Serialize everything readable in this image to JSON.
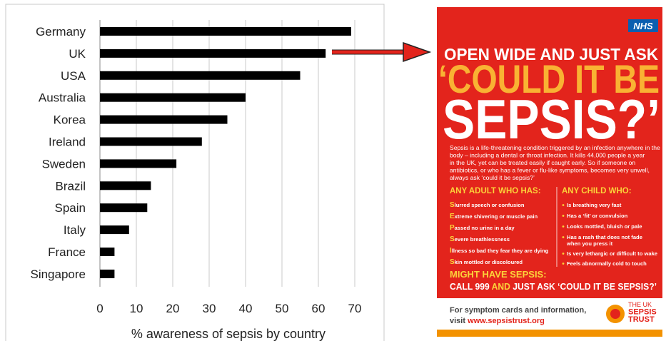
{
  "chart_data": {
    "type": "bar",
    "orientation": "horizontal",
    "x_label": "% awareness of sepsis by country",
    "categories": [
      "Germany",
      "UK",
      "USA",
      "Australia",
      "Korea",
      "Ireland",
      "Sweden",
      "Brazil",
      "Spain",
      "Italy",
      "France",
      "Singapore"
    ],
    "values": [
      69,
      62,
      55,
      40,
      35,
      28,
      21,
      14,
      13,
      8,
      4,
      4
    ],
    "color": "#000000",
    "xlim": [
      0,
      70
    ],
    "xticks": [
      0,
      10,
      20,
      30,
      40,
      50,
      60,
      70
    ],
    "grid": true
  },
  "poster": {
    "logo": "NHS",
    "headline": "OPEN WIDE AND JUST ASK",
    "title_line1": "‘COULD IT BE",
    "title_line2": "SEPSIS?’",
    "paragraph": [
      "Sepsis is a life-threatening condition triggered by an infection anywhere in the",
      "body – including a dental or throat infection. It kills 44,000 people a year",
      "in the UK, yet can be treated easily if caught early. So if someone on",
      "antibiotics, or who has a fever or flu-like symptoms, becomes very unwell,",
      "always ask ‘could it be sepsis?’"
    ],
    "adult_heading": "ANY ADULT WHO HAS:",
    "adult_items": [
      "Slurred speech or confusion",
      "Extreme shivering or muscle pain",
      "Passed no urine in a day",
      "Severe breathlessness",
      "Illness so bad they fear they are dying",
      "Skin mottled or discoloured"
    ],
    "child_heading": "ANY CHILD WHO:",
    "child_items": [
      "Is breathing very fast",
      "Has a ‘fit’ or convulsion",
      "Looks mottled, bluish or pale",
      "Has a rash that does not fade",
      "when you press it",
      "Is very lethargic or difficult to wake",
      "Feels abnormally cold to touch"
    ],
    "might_have": "MIGHT HAVE SEPSIS:",
    "call_a": "CALL 999",
    "call_b": "AND",
    "call_c": "JUST ASK ‘COULD IT BE SEPSIS?’",
    "info_line": "For symptom cards and information,",
    "visit": "visit",
    "url": "www.sepsistrust.org",
    "trust": [
      "THE UK",
      "SEPSIS",
      "TRUST"
    ]
  }
}
